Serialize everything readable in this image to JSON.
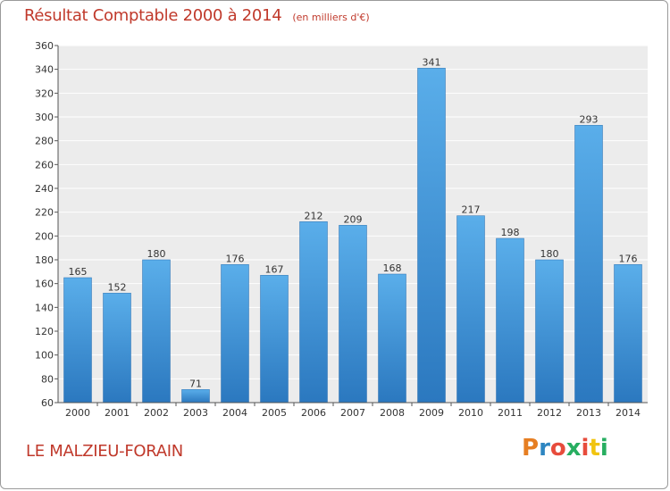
{
  "chart_data": {
    "type": "bar",
    "title": "Résultat Comptable 2000 à 2014",
    "subtitle": "(en milliers d'€)",
    "categories": [
      "2000",
      "2001",
      "2002",
      "2003",
      "2004",
      "2005",
      "2006",
      "2007",
      "2008",
      "2009",
      "2010",
      "2011",
      "2012",
      "2013",
      "2014"
    ],
    "values": [
      165,
      152,
      180,
      71,
      176,
      167,
      212,
      209,
      168,
      341,
      217,
      198,
      180,
      293,
      176
    ],
    "ylim": [
      60,
      360
    ],
    "yticks": [
      60,
      80,
      100,
      120,
      140,
      160,
      180,
      200,
      220,
      240,
      260,
      280,
      300,
      320,
      340,
      360
    ],
    "grid": true,
    "bar_color": "#3d8fd6",
    "title_color": "#c0392b"
  },
  "commune": "LE MALZIEU-FORAIN",
  "logo": {
    "letters": [
      "P",
      "r",
      "o",
      "x",
      "i",
      "t",
      "i"
    ],
    "colors": [
      "#e67e22",
      "#2e86c1",
      "#e74c3c",
      "#27ae60",
      "#e74c3c",
      "#f1c40f",
      "#27ae60"
    ]
  }
}
